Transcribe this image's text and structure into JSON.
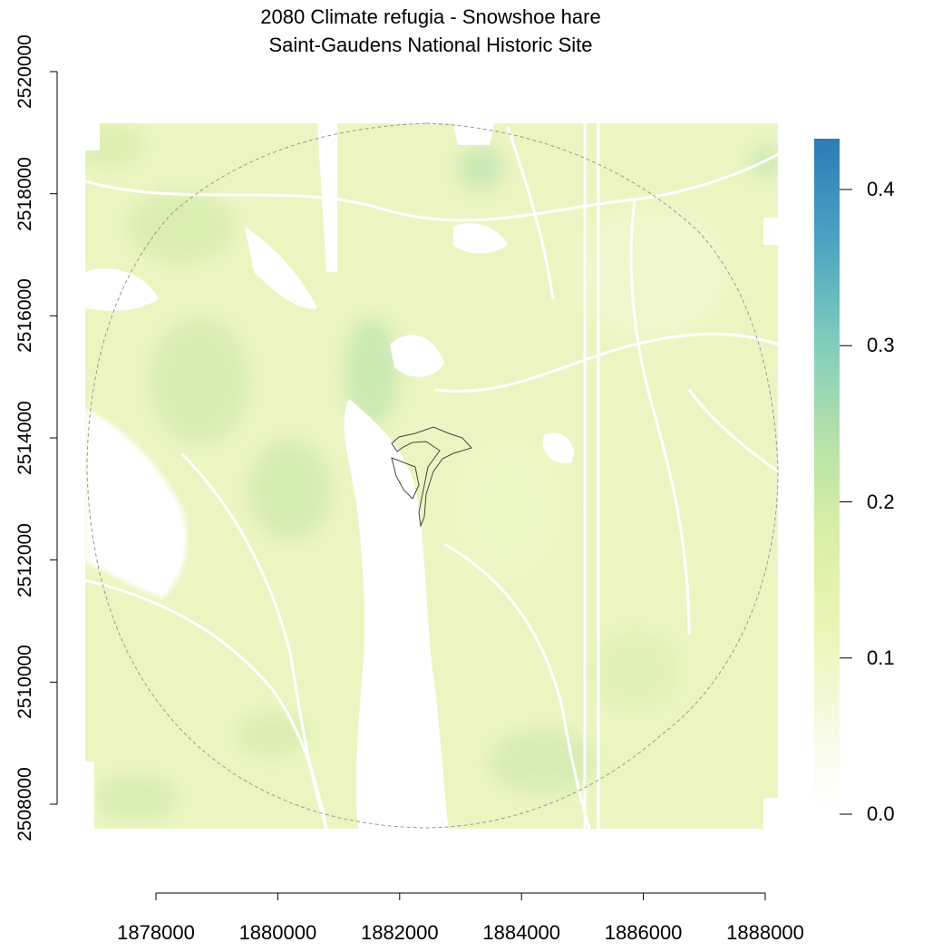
{
  "chart_data": {
    "type": "heatmap",
    "title": "2080 Climate refugia - Snowshoe hare",
    "subtitle": "Saint-Gaudens National Historic Site",
    "xlabel": "",
    "ylabel": "",
    "x_ticks": [
      1878000,
      1880000,
      1882000,
      1884000,
      1886000,
      1888000
    ],
    "y_ticks": [
      2508000,
      2510000,
      2512000,
      2514000,
      2516000,
      2518000,
      2520000
    ],
    "x_range": [
      1876200,
      1887500
    ],
    "y_range": [
      2507500,
      2519150
    ],
    "colorbar": {
      "ticks": [
        0.0,
        0.1,
        0.2,
        0.3,
        0.4
      ],
      "range": [
        0,
        0.43
      ],
      "colors": [
        "#ffffff",
        "#f2f9cf",
        "#e8f4a9",
        "#c4e6a4",
        "#8fd3b6",
        "#4fa8c0",
        "#2c7bb6"
      ]
    },
    "typical_value_range": [
      0.08,
      0.18
    ],
    "local_maxima": [
      {
        "x": 1881500,
        "y": 2514700,
        "value": 0.22
      },
      {
        "x": 1881300,
        "y": 2515800,
        "value": 0.19
      },
      {
        "x": 1883300,
        "y": 2518400,
        "value": 0.2
      },
      {
        "x": 1880150,
        "y": 2516100,
        "value": 0.2
      },
      {
        "x": 1887300,
        "y": 2518600,
        "value": 0.18
      }
    ],
    "grid": false,
    "legend": "right"
  },
  "labels": {
    "x_ticks": [
      "1878000",
      "1880000",
      "1882000",
      "1884000",
      "1886000",
      "1888000"
    ],
    "y_ticks": [
      "2508000",
      "2510000",
      "2512000",
      "2514000",
      "2516000",
      "2518000",
      "2520000"
    ],
    "colorbar_ticks": [
      "0.0",
      "0.1",
      "0.2",
      "0.3",
      "0.4"
    ]
  }
}
